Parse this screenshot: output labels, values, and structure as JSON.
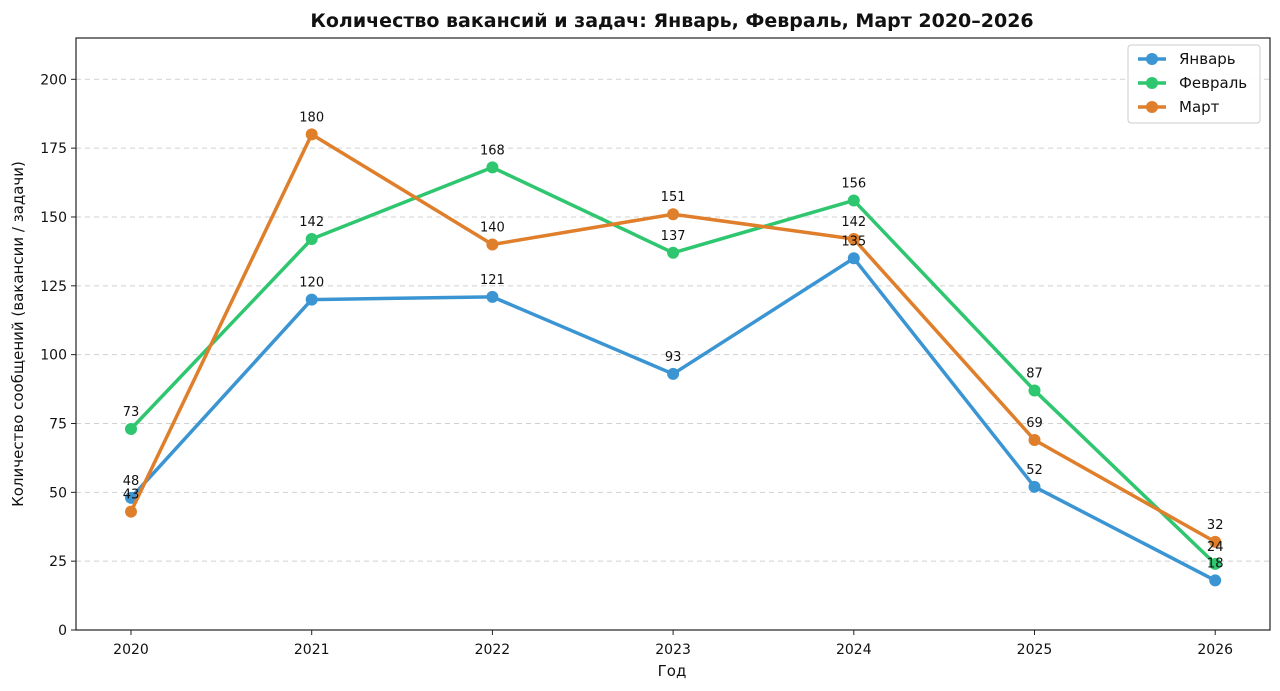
{
  "chart_data": {
    "type": "line",
    "title": "Количество вакансий и задач: Январь, Февраль, Март 2020–2026",
    "xlabel": "Год",
    "ylabel": "Количество сообщений (вакансии / задачи)",
    "categories": [
      "2020",
      "2021",
      "2022",
      "2023",
      "2024",
      "2025",
      "2026"
    ],
    "ylim": [
      0,
      215
    ],
    "yticks": [
      0,
      25,
      50,
      75,
      100,
      125,
      150,
      175,
      200
    ],
    "grid": "horizontal dashed",
    "legend_position": "top-right",
    "series": [
      {
        "name": "Январь",
        "color": "#3b95d3",
        "values": [
          48,
          120,
          121,
          93,
          135,
          52,
          18
        ]
      },
      {
        "name": "Февраль",
        "color": "#2ec66f",
        "values": [
          73,
          142,
          168,
          137,
          156,
          87,
          24
        ]
      },
      {
        "name": "Март",
        "color": "#df7f2b",
        "values": [
          43,
          180,
          140,
          151,
          142,
          69,
          32
        ]
      }
    ]
  }
}
